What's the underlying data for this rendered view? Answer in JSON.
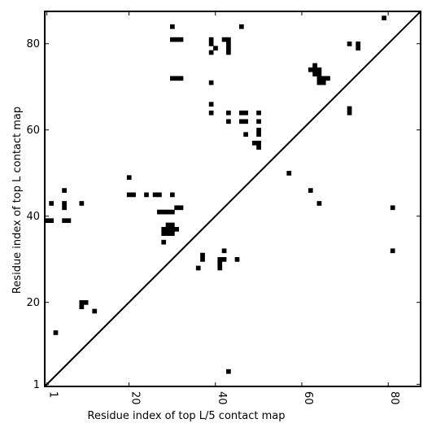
{
  "chart_data": {
    "type": "heatmap",
    "title": "",
    "xlabel": "Residue index of top L/5 contact map",
    "ylabel": "Residue index of top L contact map",
    "xlim": [
      0.5,
      87.5
    ],
    "ylim": [
      0.5,
      87.5
    ],
    "x_ticks": [
      1,
      20,
      40,
      60,
      80
    ],
    "x_tick_labels": [
      "1",
      "20",
      "40",
      "60",
      "80"
    ],
    "y_ticks": [
      1,
      20,
      40,
      60,
      80
    ],
    "y_tick_labels": [
      "1",
      "20",
      "40",
      "60",
      "80"
    ],
    "diagonal": true,
    "cell_color": "#000000",
    "background_color": "#ffffff",
    "upper_triangle_contacts": [
      [
        1,
        39
      ],
      [
        2,
        39
      ],
      [
        2,
        43
      ],
      [
        5,
        46
      ],
      [
        5,
        43
      ],
      [
        5,
        42
      ],
      [
        5,
        39
      ],
      [
        6,
        39
      ],
      [
        9,
        43
      ],
      [
        20,
        49
      ],
      [
        20,
        45
      ],
      [
        21,
        45
      ],
      [
        24,
        45
      ],
      [
        26,
        45
      ],
      [
        27,
        45
      ],
      [
        27,
        41
      ],
      [
        28,
        41
      ],
      [
        28,
        37
      ],
      [
        28,
        36
      ],
      [
        28,
        34
      ],
      [
        29,
        41
      ],
      [
        29,
        38
      ],
      [
        29,
        37
      ],
      [
        29,
        36
      ],
      [
        30,
        45
      ],
      [
        30,
        41
      ],
      [
        30,
        38
      ],
      [
        30,
        37
      ],
      [
        30,
        36
      ],
      [
        30,
        84
      ],
      [
        30,
        81
      ],
      [
        30,
        72
      ],
      [
        31,
        81
      ],
      [
        31,
        72
      ],
      [
        31,
        42
      ],
      [
        31,
        37
      ],
      [
        32,
        81
      ],
      [
        32,
        72
      ],
      [
        32,
        42
      ],
      [
        39,
        81
      ],
      [
        39,
        80
      ],
      [
        39,
        78
      ],
      [
        39,
        71
      ],
      [
        39,
        66
      ],
      [
        39,
        64
      ],
      [
        40,
        79
      ],
      [
        42,
        81
      ],
      [
        43,
        81
      ],
      [
        43,
        80
      ],
      [
        43,
        79
      ],
      [
        43,
        78
      ],
      [
        43,
        64
      ],
      [
        43,
        62
      ],
      [
        46,
        84
      ],
      [
        46,
        64
      ],
      [
        46,
        62
      ],
      [
        47,
        64
      ],
      [
        47,
        62
      ],
      [
        47,
        59
      ],
      [
        49,
        57
      ],
      [
        50,
        64
      ],
      [
        50,
        62
      ],
      [
        50,
        60
      ],
      [
        50,
        59
      ],
      [
        50,
        57
      ],
      [
        50,
        56
      ],
      [
        62,
        74
      ],
      [
        63,
        75
      ],
      [
        63,
        74
      ],
      [
        63,
        73
      ],
      [
        64,
        74
      ],
      [
        64,
        73
      ],
      [
        64,
        72
      ],
      [
        64,
        71
      ],
      [
        65,
        72
      ],
      [
        65,
        71
      ],
      [
        66,
        72
      ],
      [
        71,
        80
      ],
      [
        71,
        65
      ],
      [
        71,
        64
      ],
      [
        73,
        80
      ],
      [
        73,
        79
      ],
      [
        79,
        86
      ]
    ],
    "lower_triangle_contacts": [
      [
        3,
        13
      ],
      [
        9,
        20
      ],
      [
        9,
        19
      ],
      [
        10,
        20
      ],
      [
        12,
        18
      ],
      [
        36,
        28
      ],
      [
        37,
        31
      ],
      [
        37,
        30
      ],
      [
        41,
        30
      ],
      [
        41,
        29
      ],
      [
        41,
        28
      ],
      [
        42,
        32
      ],
      [
        42,
        30
      ],
      [
        43,
        4
      ],
      [
        45,
        30
      ],
      [
        57,
        50
      ],
      [
        62,
        46
      ],
      [
        64,
        43
      ],
      [
        81,
        42
      ],
      [
        81,
        32
      ]
    ]
  }
}
